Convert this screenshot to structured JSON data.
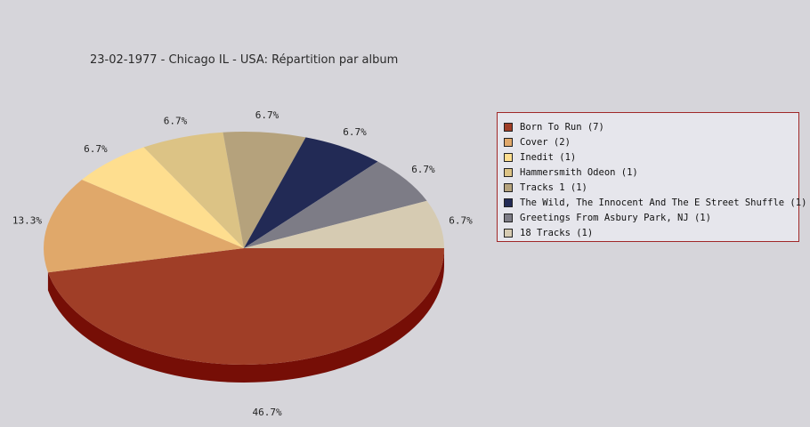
{
  "chart_data": {
    "type": "pie",
    "title": "23-02-1977 - Chicago IL - USA:  Répartition par album",
    "slices": [
      {
        "name": "Born To Run (7)",
        "value": 7,
        "label": "46.7%",
        "color": "#a03e27",
        "side_color": "#760e06"
      },
      {
        "name": "Cover (2)",
        "value": 2,
        "label": "13.3%",
        "color": "#e0a86a",
        "side_color": "#a8763c"
      },
      {
        "name": "Inedit (1)",
        "value": 1,
        "label": "6.7%",
        "color": "#fede8f",
        "side_color": "#c8aa5c"
      },
      {
        "name": "Hammersmith Odeon  (1)",
        "value": 1,
        "label": "6.7%",
        "color": "#dcc385",
        "side_color": "#a89050"
      },
      {
        "name": "Tracks 1 (1)",
        "value": 1,
        "label": "6.7%",
        "color": "#b5a27c",
        "side_color": "#86744e"
      },
      {
        "name": "The Wild, The Innocent And The E Street Shuffle (1)",
        "value": 1,
        "label": "6.7%",
        "color": "#222a55",
        "side_color": "#111630"
      },
      {
        "name": "Greetings From Asbury Park, NJ (1)",
        "value": 1,
        "label": "6.7%",
        "color": "#7d7c86",
        "side_color": "#55545c"
      },
      {
        "name": "18 Tracks (1)",
        "value": 1,
        "label": "6.7%",
        "color": "#d6cbb2",
        "side_color": "#a89e86"
      }
    ],
    "legend_position": "right"
  }
}
